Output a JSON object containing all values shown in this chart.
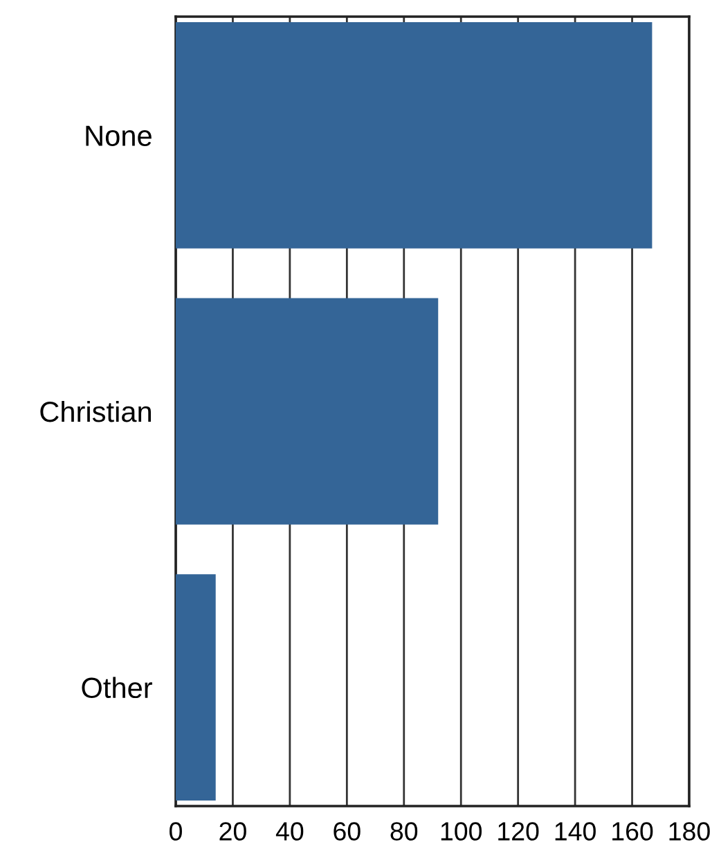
{
  "chart_data": {
    "type": "bar",
    "orientation": "horizontal",
    "categories": [
      "None",
      "Christian",
      "Other"
    ],
    "values": [
      167,
      92,
      14
    ],
    "color": "#346597",
    "xlim": [
      0,
      180
    ],
    "xticks": [
      0,
      20,
      40,
      60,
      80,
      100,
      120,
      140,
      160,
      180
    ],
    "grid": "x",
    "legend": false
  }
}
